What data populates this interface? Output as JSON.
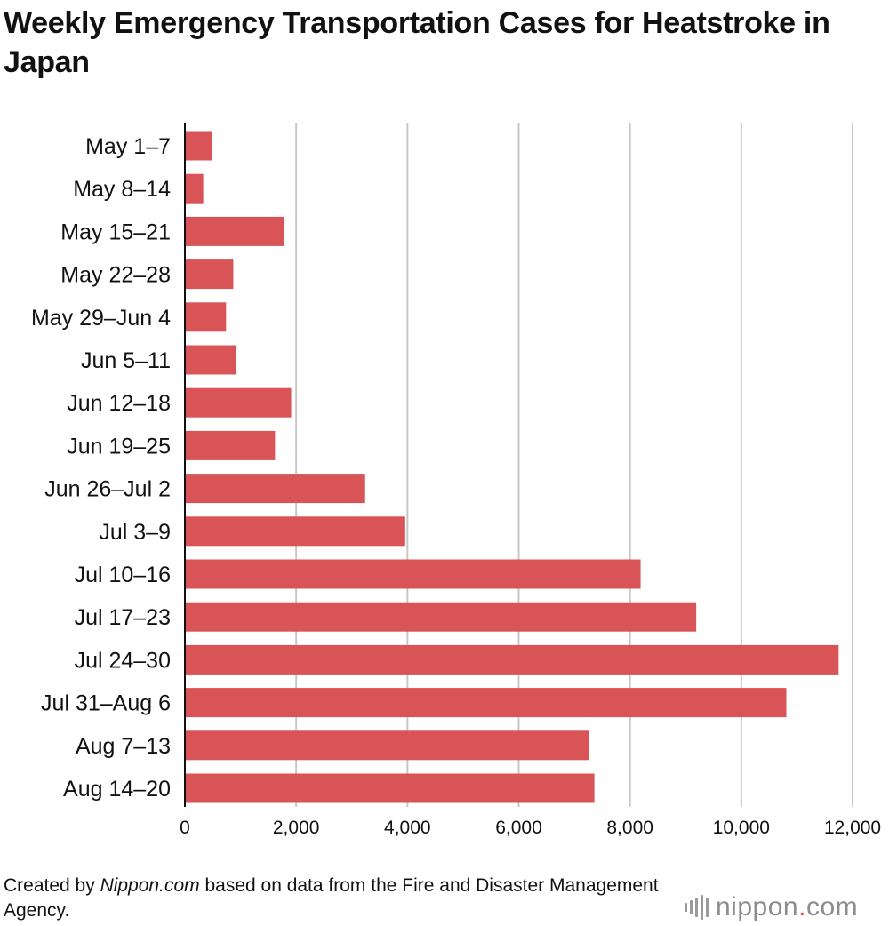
{
  "title": "Weekly Emergency Transportation Cases for Heatstroke in Japan",
  "footer": {
    "prefix": "Created by ",
    "brand": "Nippon.com",
    "suffix": " based on data from the Fire and Disaster Management Agency."
  },
  "logo": {
    "name": "nippon",
    "dot": ".",
    "tld": "com"
  },
  "colors": {
    "bar": "#d95457",
    "grid": "#c8c8c8",
    "axis": "#111111"
  },
  "chart_data": {
    "type": "bar",
    "orientation": "horizontal",
    "title": "Weekly Emergency Transportation Cases for Heatstroke in Japan",
    "xlabel": "",
    "ylabel": "",
    "xlim": [
      0,
      12000
    ],
    "xticks": [
      0,
      2000,
      4000,
      6000,
      8000,
      10000,
      12000
    ],
    "xtick_labels": [
      "0",
      "2,000",
      "4,000",
      "6,000",
      "8,000",
      "10,000",
      "12,000"
    ],
    "grid": true,
    "categories": [
      "May 1–7",
      "May 8–14",
      "May 15–21",
      "May 22–28",
      "May 29–Jun 4",
      "Jun 5–11",
      "Jun 12–18",
      "Jun 19–25",
      "Jun 26–Jul 2",
      "Jul 3–9",
      "Jul 10–16",
      "Jul 17–23",
      "Jul 24–30",
      "Jul 31–Aug 6",
      "Aug 7–13",
      "Aug 14–20"
    ],
    "values": [
      490,
      330,
      1780,
      870,
      740,
      920,
      1910,
      1620,
      3240,
      3960,
      8190,
      9190,
      11750,
      10810,
      7260,
      7360
    ]
  }
}
